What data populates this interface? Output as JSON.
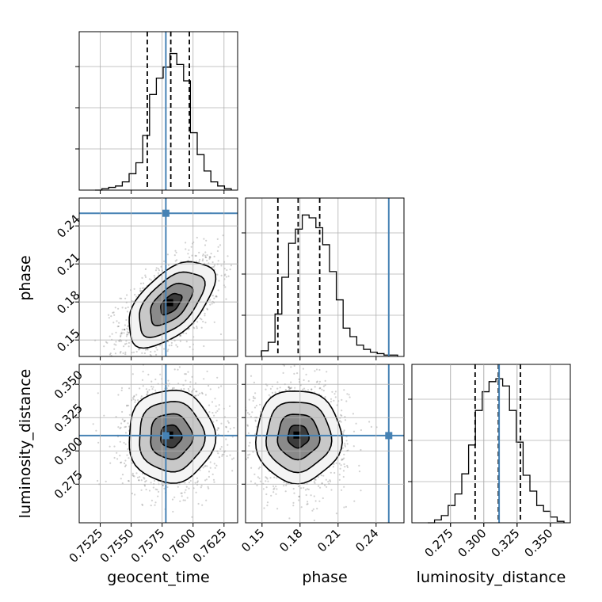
{
  "chart_data": {
    "type": "corner",
    "parameters": [
      "geocent_time",
      "phase",
      "luminosity_distance"
    ],
    "ranges": {
      "geocent_time": [
        0.7508,
        0.7636
      ],
      "phase": [
        0.137,
        0.262
      ],
      "luminosity_distance": [
        0.246,
        0.365
      ]
    },
    "ticks": {
      "geocent_time": [
        "0.7525",
        "0.7550",
        "0.7575",
        "0.7600",
        "0.7625"
      ],
      "phase": [
        "0.15",
        "0.18",
        "0.21",
        "0.24"
      ],
      "luminosity_distance": [
        "0.275",
        "0.300",
        "0.325",
        "0.350"
      ]
    },
    "truths": {
      "geocent_time": 0.7578,
      "phase": 0.25,
      "luminosity_distance": 0.3115
    },
    "quantiles": {
      "geocent_time": [
        0.7563,
        0.7582,
        0.7597
      ],
      "phase": [
        0.1625,
        0.1785,
        0.1955
      ],
      "luminosity_distance": [
        0.2935,
        0.311,
        0.3275
      ]
    },
    "histograms": {
      "geocent_time": [
        0.0,
        0.01,
        0.02,
        0.03,
        0.06,
        0.12,
        0.2,
        0.4,
        0.7,
        0.82,
        0.9,
        1.0,
        0.92,
        0.8,
        0.42,
        0.26,
        0.14,
        0.06,
        0.03,
        0.01
      ],
      "phase": [
        0.04,
        0.1,
        0.3,
        0.56,
        0.8,
        0.9,
        1.0,
        0.98,
        0.91,
        0.79,
        0.6,
        0.4,
        0.2,
        0.14,
        0.08,
        0.05,
        0.03,
        0.02,
        0.01,
        0.01
      ],
      "luminosity_distance": [
        0.0,
        0.02,
        0.05,
        0.12,
        0.2,
        0.34,
        0.54,
        0.78,
        0.91,
        0.98,
        1.0,
        0.95,
        0.78,
        0.56,
        0.33,
        0.22,
        0.12,
        0.08,
        0.04,
        0.01
      ]
    },
    "correlations": {
      "phase|geocent_time": 0.55,
      "luminosity_distance|geocent_time": 0.0,
      "luminosity_distance|phase": 0.0
    },
    "colors": {
      "truth": "#4682b4",
      "line": "#000000",
      "grid": "#b0b0b0"
    },
    "grid": true
  }
}
